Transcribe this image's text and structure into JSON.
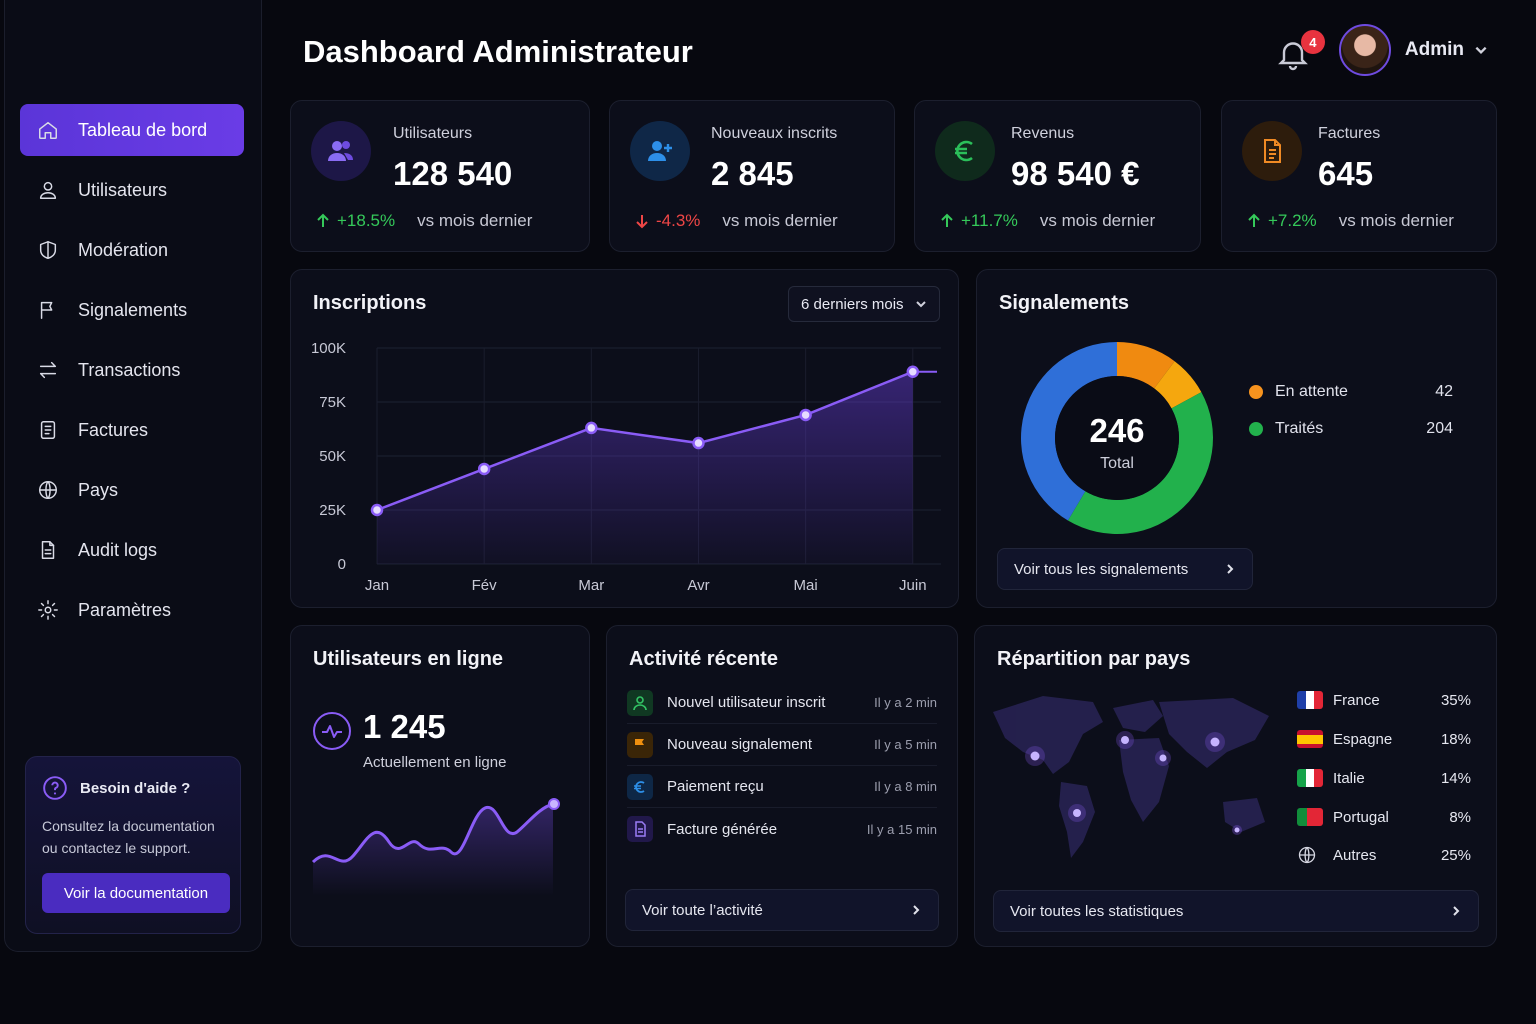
{
  "header": {
    "title": "Dashboard Administrateur",
    "notifications": "4",
    "user": "Admin"
  },
  "sidebar": {
    "items": [
      {
        "label": "Tableau de bord",
        "icon": "home-icon"
      },
      {
        "label": "Utilisateurs",
        "icon": "user-icon"
      },
      {
        "label": "Modération",
        "icon": "shield-icon"
      },
      {
        "label": "Signalements",
        "icon": "flag-icon"
      },
      {
        "label": "Transactions",
        "icon": "transfer-icon"
      },
      {
        "label": "Factures",
        "icon": "invoice-icon"
      },
      {
        "label": "Pays",
        "icon": "globe-icon"
      },
      {
        "label": "Audit logs",
        "icon": "document-icon"
      },
      {
        "label": "Paramètres",
        "icon": "gear-icon"
      }
    ],
    "help": {
      "title": "Besoin d'aide ?",
      "text_line1": "Consultez la documentation",
      "text_line2": "ou contactez le support.",
      "button": "Voir la documentation"
    }
  },
  "stats": [
    {
      "label": "Utilisateurs",
      "value": "128 540",
      "delta": "+18.5%",
      "trend": "up",
      "compare": "vs mois dernier",
      "color": "#6e4be0"
    },
    {
      "label": "Nouveaux inscrits",
      "value": "2 845",
      "delta": "-4.3%",
      "trend": "down",
      "compare": "vs mois dernier",
      "color": "#2d8fe8"
    },
    {
      "label": "Revenus",
      "value": "98 540 €",
      "delta": "+11.7%",
      "trend": "up",
      "compare": "vs mois dernier",
      "color": "#2bbf5a"
    },
    {
      "label": "Factures",
      "value": "645",
      "delta": "+7.2%",
      "trend": "up",
      "compare": "vs mois dernier",
      "color": "#f08a24"
    }
  ],
  "inscriptions": {
    "title": "Inscriptions",
    "period": "6 derniers mois",
    "chart_data": {
      "type": "area",
      "categories": [
        "Jan",
        "Fév",
        "Mar",
        "Avr",
        "Mai",
        "Juin"
      ],
      "values": [
        25000,
        44000,
        63000,
        56000,
        69000,
        89000
      ],
      "ylim": [
        0,
        100000
      ],
      "yticks": [
        "0",
        "25K",
        "50K",
        "75K",
        "100K"
      ],
      "grid": true,
      "color": "#8a5cf6"
    }
  },
  "signalements": {
    "title": "Signalements",
    "total": "246",
    "total_label": "Total",
    "legend": [
      {
        "label": "En attente",
        "value": "42",
        "color": "#f7931e"
      },
      {
        "label": "Traités",
        "value": "204",
        "color": "#22b14c"
      }
    ],
    "donut_colors": [
      "#f08a10",
      "#f5a70e",
      "#22b14c",
      "#2f6fd8"
    ],
    "link": "Voir tous les signalements"
  },
  "online": {
    "title": "Utilisateurs en ligne",
    "value": "1 245",
    "subtitle": "Actuellement en ligne"
  },
  "activity": {
    "title": "Activité récente",
    "items": [
      {
        "label": "Nouvel utilisateur inscrit",
        "time": "Il y a 2 min",
        "icon": "user-icon",
        "color": "#1f8f44"
      },
      {
        "label": "Nouveau signalement",
        "time": "Il y a 5 min",
        "icon": "flag-icon",
        "color": "#e8840f"
      },
      {
        "label": "Paiement reçu",
        "time": "Il y a 8 min",
        "icon": "euro-icon",
        "color": "#1e6fc8"
      },
      {
        "label": "Facture générée",
        "time": "Il y a 15 min",
        "icon": "invoice-icon",
        "color": "#6e4be0"
      }
    ],
    "link": "Voir toute l’activité"
  },
  "countries": {
    "title": "Répartition par pays",
    "items": [
      {
        "name": "France",
        "pct": "35%",
        "flag": [
          "#1f3fa8",
          "#ffffff",
          "#e32636"
        ]
      },
      {
        "name": "Espagne",
        "pct": "18%",
        "flag": [
          "#c8102e",
          "#ffc400",
          "#c8102e"
        ]
      },
      {
        "name": "Italie",
        "pct": "14%",
        "flag": [
          "#16a34a",
          "#ffffff",
          "#e32636"
        ]
      },
      {
        "name": "Portugal",
        "pct": "8%",
        "flag": [
          "#118d3b",
          "#e32636",
          "#e32636"
        ]
      },
      {
        "name": "Autres",
        "pct": "25%",
        "icon": "globe-icon"
      }
    ],
    "link": "Voir toutes les statistiques"
  }
}
